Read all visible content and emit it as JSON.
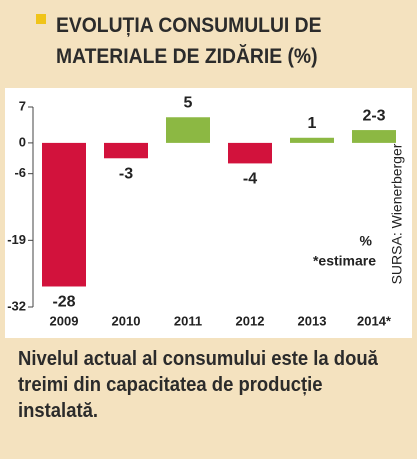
{
  "chart_data": {
    "type": "bar",
    "title": "EVOLUȚIA CONSUMULUI DE MATERIALE DE ZIDĂRIE (%)",
    "categories": [
      "2009",
      "2010",
      "2011",
      "2012",
      "2013",
      "2014*"
    ],
    "values": [
      -28,
      -3,
      5,
      -4,
      1,
      2.5
    ],
    "value_labels": [
      "-28",
      "-3",
      "5",
      "-4",
      "1",
      "2-3"
    ],
    "colors": [
      "#d2123c",
      "#d2123c",
      "#8cb843",
      "#d2123c",
      "#8cb843",
      "#8cb843"
    ],
    "ylim": [
      -32,
      7
    ],
    "yticks": [
      7,
      0,
      -6,
      -19,
      -32
    ],
    "unit": "%",
    "note": "*estimare",
    "source": "SURSA: Wienerberger",
    "caption": "Nivelul actual al consumului este la două treimi din capacitatea de producție instalată."
  }
}
